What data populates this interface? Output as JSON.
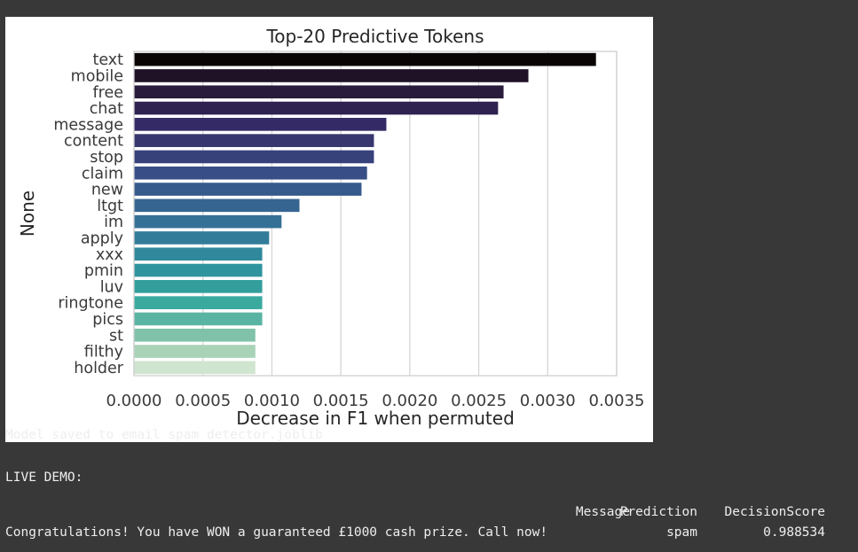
{
  "chart_data": {
    "type": "bar",
    "orientation": "horizontal",
    "title": "Top-20 Predictive Tokens",
    "xlabel": "Decrease in F1 when permuted",
    "ylabel": "None",
    "xlim": [
      0,
      0.0035
    ],
    "xticks": [
      "0.0000",
      "0.0005",
      "0.0010",
      "0.0015",
      "0.0020",
      "0.0025",
      "0.0030",
      "0.0035"
    ],
    "grid": "vertical",
    "categories": [
      "text",
      "mobile",
      "free",
      "chat",
      "message",
      "content",
      "stop",
      "claim",
      "new",
      "ltgt",
      "im",
      "apply",
      "xxx",
      "pmin",
      "luv",
      "ringtone",
      "pics",
      "st",
      "filthy",
      "holder"
    ],
    "values": [
      0.00335,
      0.00286,
      0.00268,
      0.00264,
      0.00183,
      0.00174,
      0.00174,
      0.00169,
      0.00165,
      0.0012,
      0.00107,
      0.00098,
      0.00093,
      0.00093,
      0.00093,
      0.00093,
      0.00093,
      0.00088,
      0.00088,
      0.00088
    ],
    "colors": [
      "#0b0405",
      "#1f1227",
      "#291b3b",
      "#2f2150",
      "#342a66",
      "#37366f",
      "#37427b",
      "#374f86",
      "#375a8c",
      "#366591",
      "#357196",
      "#327c99",
      "#30889c",
      "#2f949d",
      "#329f9c",
      "#3aaa9f",
      "#5ab4a3",
      "#7fc2a9",
      "#a8d3b7",
      "#cfe5cf"
    ]
  },
  "console": {
    "saved_line": "Model saved to email_spam_detector.joblib",
    "demo_label": "LIVE DEMO:",
    "table_header": {
      "message": "Message",
      "prediction": "Prediction",
      "score": "DecisionScore"
    },
    "row": {
      "message": "Congratulations! You have WON a guaranteed £1000 cash prize. Call now!",
      "prediction": "spam",
      "score": "0.988534"
    }
  }
}
